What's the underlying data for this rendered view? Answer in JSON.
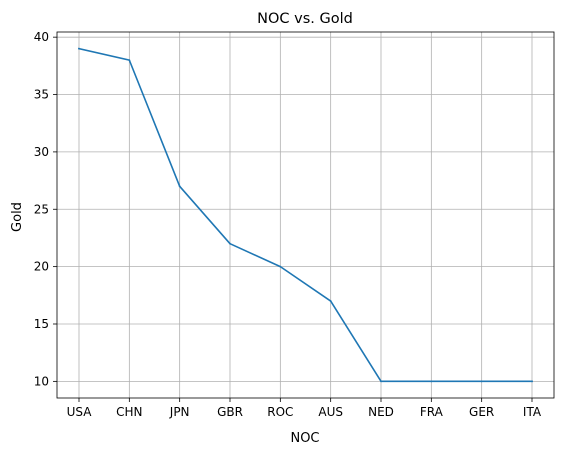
{
  "chart_data": {
    "type": "line",
    "title": "NOC vs. Gold",
    "xlabel": "NOC",
    "ylabel": "Gold",
    "categories": [
      "USA",
      "CHN",
      "JPN",
      "GBR",
      "ROC",
      "AUS",
      "NED",
      "FRA",
      "GER",
      "ITA"
    ],
    "series": [
      {
        "values": [
          39,
          38,
          27,
          22,
          20,
          17,
          10,
          10,
          10,
          10
        ]
      }
    ],
    "ylim": [
      8.55,
      40.45
    ],
    "yticks": [
      10,
      15,
      20,
      25,
      30,
      35,
      40
    ],
    "grid": true,
    "colors": {
      "line": "#1f77b4",
      "grid": "#b0b0b0",
      "axis": "#000000"
    }
  }
}
